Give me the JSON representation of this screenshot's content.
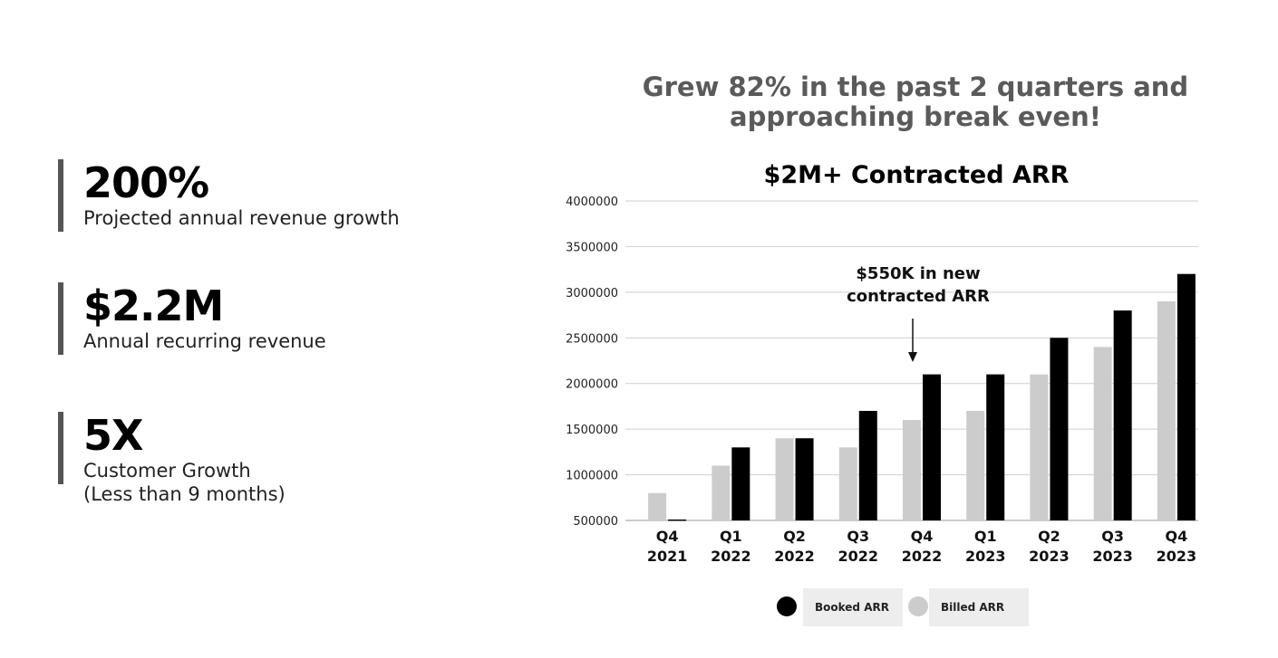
{
  "stats": [
    {
      "value": "200%",
      "label": "Projected annual revenue growth"
    },
    {
      "value": "$2.2M",
      "label": "Annual recurring revenue"
    },
    {
      "value": "5X",
      "label_line1": "Customer Growth",
      "label_line2": "(Less than 9 months)"
    }
  ],
  "headline": {
    "line1": "Grew 82% in the past 2 quarters and",
    "line2": "approaching break even!"
  },
  "colors": {
    "booked": "#000000",
    "billed": "#cccccc",
    "grid": "#cfcfcf",
    "headline": "#5a5a5a",
    "accent_bar": "#555555"
  },
  "chart_data": {
    "type": "bar",
    "title": "$2M+ Contracted ARR",
    "categories": [
      [
        "Q4",
        "2021"
      ],
      [
        "Q1",
        "2022"
      ],
      [
        "Q2",
        "2022"
      ],
      [
        "Q3",
        "2022"
      ],
      [
        "Q4",
        "2022"
      ],
      [
        "Q1",
        "2023"
      ],
      [
        "Q2",
        "2023"
      ],
      [
        "Q3",
        "2023"
      ],
      [
        "Q4",
        "2023"
      ]
    ],
    "series": [
      {
        "name": "Billed ARR",
        "color": "#cccccc",
        "values": [
          800000,
          1100000,
          1400000,
          1300000,
          1600000,
          1700000,
          2100000,
          2400000,
          2900000
        ]
      },
      {
        "name": "Booked ARR",
        "color": "#000000",
        "values": [
          510000,
          1300000,
          1400000,
          1700000,
          2100000,
          2100000,
          2500000,
          2800000,
          3200000
        ]
      }
    ],
    "yticks": [
      500000,
      1000000,
      1500000,
      2000000,
      2500000,
      3000000,
      3500000,
      4000000
    ],
    "ylim": [
      500000,
      4000000
    ],
    "xlabel": "",
    "ylabel": "",
    "grid": true,
    "annotation": {
      "line1": "$550K in new",
      "line2": "contracted ARR",
      "target_category_index": 4
    },
    "legend": {
      "position": "bottom-center",
      "items": [
        {
          "name": "Booked ARR",
          "color": "#000000"
        },
        {
          "name": "Billed ARR",
          "color": "#cccccc"
        }
      ]
    }
  }
}
